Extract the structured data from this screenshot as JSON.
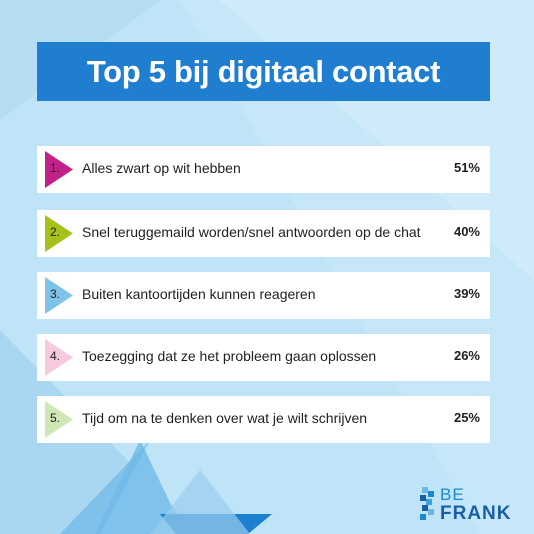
{
  "colors": {
    "background": "#bfe3f7",
    "title_bar": "#1f7ed0",
    "marker_1": "#c2218a",
    "marker_2": "#a6c21a",
    "marker_3": "#7ec3e8",
    "marker_4": "#f6c9df",
    "marker_5": "#cfe6b5"
  },
  "chart_data": {
    "type": "table",
    "title": "Top 5 bij digitaal contact",
    "rows": [
      {
        "rank": "1.",
        "label": "Alles zwart op wit hebben",
        "value": "51%"
      },
      {
        "rank": "2.",
        "label": "Snel teruggemaild worden/snel antwoorden op de chat",
        "value": "40%"
      },
      {
        "rank": "3.",
        "label": "Buiten kantoortijden kunnen reageren",
        "value": "39%"
      },
      {
        "rank": "4.",
        "label": "Toezegging dat ze het probleem gaan oplossen",
        "value": "26%"
      },
      {
        "rank": "5.",
        "label": "Tijd om na te denken over wat je wilt schrijven",
        "value": "25%"
      }
    ]
  },
  "logo": {
    "line1": "BE",
    "line2": "FRANK"
  }
}
